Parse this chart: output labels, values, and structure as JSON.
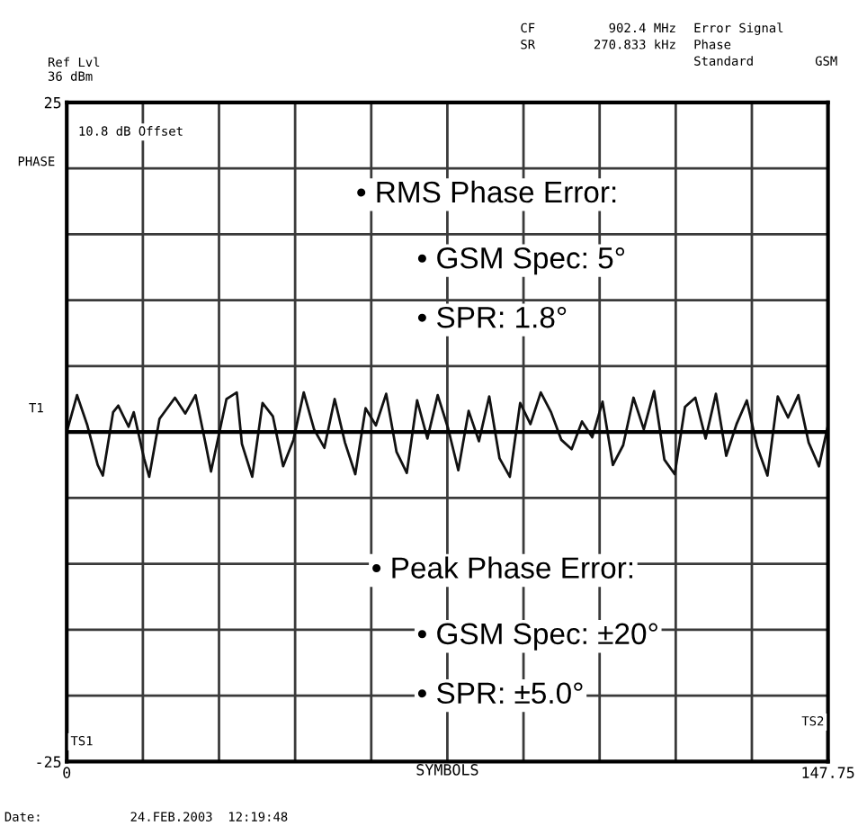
{
  "chart_data": {
    "type": "line",
    "ylabel": "PHASE",
    "xlabel": "SYMBOLS",
    "x": [
      0,
      2,
      4,
      6,
      7,
      9,
      10,
      12,
      13,
      15,
      16,
      18,
      21,
      23,
      25,
      27,
      28,
      31,
      33,
      34,
      36,
      38,
      40,
      42,
      44,
      46,
      48,
      50,
      52,
      54,
      56,
      58,
      60,
      62,
      64,
      66,
      68,
      70,
      72,
      74,
      76,
      78,
      80,
      82,
      84,
      86,
      88,
      90,
      92,
      94,
      96,
      98,
      100,
      102,
      104,
      106,
      108,
      110,
      112,
      114,
      116,
      118,
      120,
      122,
      124,
      126,
      128,
      130,
      132,
      134,
      136,
      138,
      140,
      142,
      144,
      146,
      147.75
    ],
    "series": [
      {
        "color": "#111111",
        "values": [
          0,
          2.8,
          0.5,
          -2.5,
          -3.3,
          1.5,
          2,
          0.4,
          1.5,
          -2,
          -3.4,
          1,
          2.6,
          1.4,
          2.8,
          -1,
          -3,
          2.5,
          3,
          -0.9,
          -3.4,
          2.2,
          1.2,
          -2.6,
          -0.6,
          3,
          0.2,
          -1.2,
          2.5,
          -0.8,
          -3.2,
          1.8,
          0.5,
          2.9,
          -1.5,
          -3.1,
          2.4,
          -0.5,
          2.8,
          0.3,
          -2.9,
          1.6,
          -0.7,
          2.7,
          -2,
          -3.4,
          2.2,
          0.6,
          3,
          1.5,
          -0.6,
          -1.3,
          0.8,
          -0.4,
          2.3,
          -2.5,
          -1,
          2.6,
          0.2,
          3.1,
          -2.1,
          -3.2,
          1.9,
          2.6,
          -0.5,
          2.9,
          -1.8,
          0.6,
          2.4,
          -1.1,
          -3.3,
          2.7,
          1.1,
          2.8,
          -0.8,
          -2.6,
          0.5
        ]
      }
    ],
    "xlim": [
      0,
      147.75
    ],
    "ylim": [
      -25,
      25
    ],
    "xticks": [
      0,
      {
        "value": 14.775,
        "label": null
      },
      {
        "value": 29.55,
        "label": null
      },
      {
        "value": 44.325,
        "label": null
      },
      {
        "value": 59.1,
        "label": null
      },
      {
        "value": 73.875,
        "label": null
      },
      {
        "value": 88.65,
        "label": null
      },
      {
        "value": 103.425,
        "label": null
      },
      {
        "value": 118.2,
        "label": null
      },
      {
        "value": 132.975,
        "label": null
      },
      147.75
    ],
    "yticks": [
      -25,
      {
        "value": -20,
        "label": null
      },
      {
        "value": -15,
        "label": null
      },
      {
        "value": -10,
        "label": null
      },
      {
        "value": -5,
        "label": null
      },
      {
        "value": 5,
        "label": null
      },
      {
        "value": 10,
        "label": null
      },
      {
        "value": 15,
        "label": null
      },
      {
        "value": 20,
        "label": null
      },
      25
    ],
    "grid": true,
    "ref_lines": [
      {
        "axis": "y",
        "value": 0,
        "label": "T1"
      }
    ],
    "annotations": [
      "Ref Lvl\n36 dBm",
      "CF",
      "902.4 MHz",
      "SR",
      "270.833 kHz",
      "Error Signal",
      "Phase",
      "Standard",
      "GSM",
      "Date:",
      "24.FEB.2003  12:19:48",
      "10.8 dB Offset",
      "TS1",
      "TS2",
      "• RMS Phase Error:",
      "• GSM Spec: 5°",
      "• SPR: 1.8°",
      "• Peak Phase Error:",
      "• GSM Spec: ±20°",
      "• SPR: ±5.0°"
    ]
  }
}
